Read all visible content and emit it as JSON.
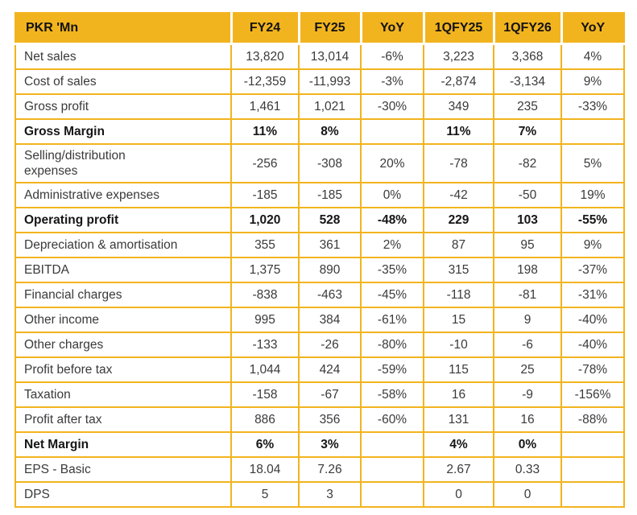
{
  "table": {
    "title": "Financial results table",
    "unit_label": "PKR 'Mn",
    "header": {
      "labels": [
        "PKR 'Mn",
        "FY24",
        "FY25",
        "YoY",
        "1QFY25",
        "1QFY26",
        "YoY"
      ]
    },
    "rows": [
      {
        "label": "Net sales",
        "bold": false,
        "values": [
          "13,820",
          "13,014",
          "-6%",
          "3,223",
          "3,368",
          "4%"
        ]
      },
      {
        "label": "Cost of sales",
        "bold": false,
        "values": [
          "-12,359",
          "-11,993",
          "-3%",
          "-2,874",
          "-3,134",
          "9%"
        ]
      },
      {
        "label": "Gross profit",
        "bold": false,
        "values": [
          "1,461",
          "1,021",
          "-30%",
          "349",
          "235",
          "-33%"
        ]
      },
      {
        "label": "Gross Margin",
        "bold": true,
        "values": [
          "11%",
          "8%",
          "",
          "11%",
          "7%",
          ""
        ]
      },
      {
        "label": "Selling/distribution expenses",
        "bold": false,
        "values": [
          "-256",
          "-308",
          "20%",
          "-78",
          "-82",
          "5%"
        ]
      },
      {
        "label": "Administrative expenses",
        "bold": false,
        "values": [
          "-185",
          "-185",
          "0%",
          "-42",
          "-50",
          "19%"
        ]
      },
      {
        "label": "Operating profit",
        "bold": true,
        "values": [
          "1,020",
          "528",
          "-48%",
          "229",
          "103",
          "-55%"
        ]
      },
      {
        "label": "Depreciation & amortisation",
        "bold": false,
        "values": [
          "355",
          "361",
          "2%",
          "87",
          "95",
          "9%"
        ]
      },
      {
        "label": "EBITDA",
        "bold": false,
        "values": [
          "1,375",
          "890",
          "-35%",
          "315",
          "198",
          "-37%"
        ]
      },
      {
        "label": "Financial charges",
        "bold": false,
        "values": [
          "-838",
          "-463",
          "-45%",
          "-118",
          "-81",
          "-31%"
        ]
      },
      {
        "label": "Other income",
        "bold": false,
        "values": [
          "995",
          "384",
          "-61%",
          "15",
          "9",
          "-40%"
        ]
      },
      {
        "label": "Other charges",
        "bold": false,
        "values": [
          "-133",
          "-26",
          "-80%",
          "-10",
          "-6",
          "-40%"
        ]
      },
      {
        "label": "Profit before tax",
        "bold": false,
        "values": [
          "1,044",
          "424",
          "-59%",
          "115",
          "25",
          "-78%"
        ]
      },
      {
        "label": "Taxation",
        "bold": false,
        "values": [
          "-158",
          "-67",
          "-58%",
          "16",
          "-9",
          "-156%"
        ]
      },
      {
        "label": "Profit after tax",
        "bold": false,
        "values": [
          "886",
          "356",
          "-60%",
          "131",
          "16",
          "-88%"
        ]
      },
      {
        "label": "Net Margin",
        "bold": true,
        "values": [
          "6%",
          "3%",
          "",
          "4%",
          "0%",
          ""
        ]
      },
      {
        "label": "EPS - Basic",
        "bold": false,
        "values": [
          "18.04",
          "7.26",
          "",
          "2.67",
          "0.33",
          ""
        ]
      },
      {
        "label": "DPS",
        "bold": false,
        "values": [
          "5",
          "3",
          "",
          "0",
          "0",
          ""
        ]
      }
    ],
    "colors": {
      "accent": "#F2B41E",
      "header_text": "#121212",
      "body_text": "#3a3a3a"
    }
  }
}
